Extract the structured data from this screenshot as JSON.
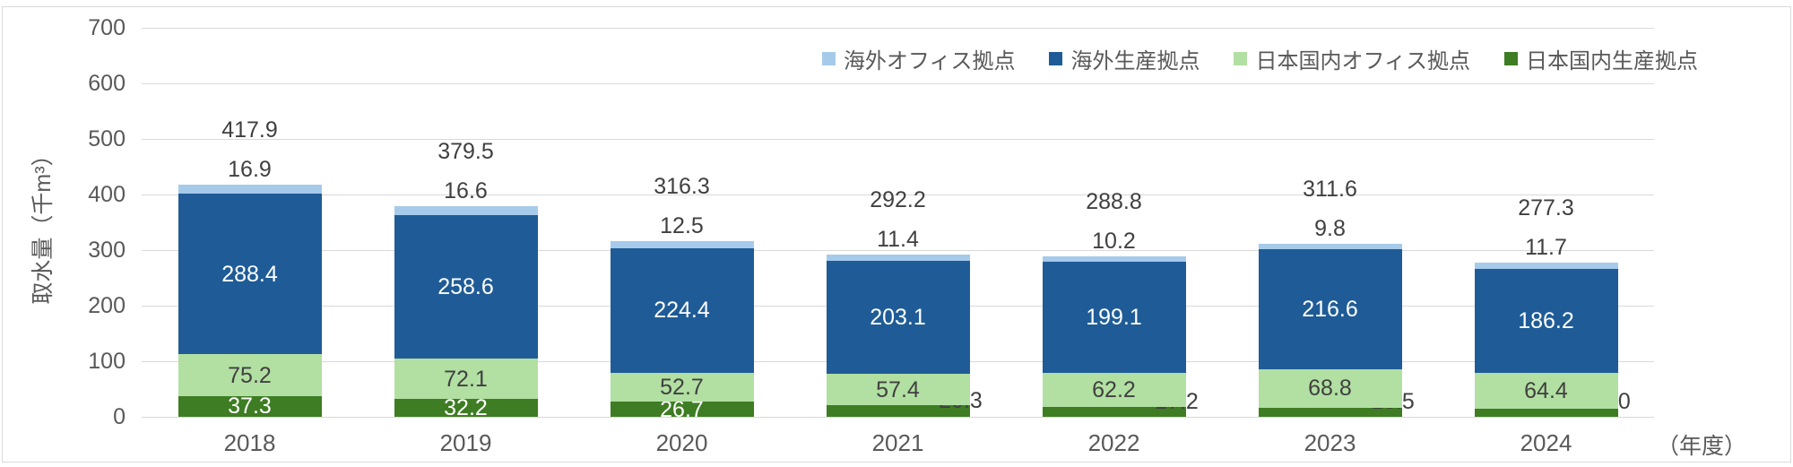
{
  "page": {
    "background": "#FFFFFF",
    "border_color": "#D9D9D9"
  },
  "chart_data": {
    "type": "bar",
    "stacked": true,
    "orientation": "vertical",
    "title": "",
    "ylabel": "取水量（千m³）",
    "xlabel_suffix": "（年度）",
    "ylim": [
      0,
      700
    ],
    "yticks": [
      0,
      100,
      200,
      300,
      400,
      500,
      600,
      700
    ],
    "grid": true,
    "gridline_color": "#D9D9D9",
    "tick_text_color": "#595959",
    "data_label_color": "#404040",
    "categories": [
      "2018",
      "2019",
      "2020",
      "2021",
      "2022",
      "2023",
      "2024"
    ],
    "series": [
      {
        "key": "domestic-production",
        "name": "日本国内生産拠点",
        "color": "#3E7D23",
        "label_color": "#FFFFFF",
        "values": [
          37.3,
          32.2,
          26.7,
          20.3,
          17.2,
          16.5,
          15.0
        ]
      },
      {
        "key": "domestic-office",
        "name": "日本国内オフィス拠点",
        "color": "#B2DFA2",
        "label_color": "#404040",
        "values": [
          75.2,
          72.1,
          52.7,
          57.4,
          62.2,
          68.8,
          64.4
        ]
      },
      {
        "key": "overseas-production",
        "name": "海外生産拠点",
        "color": "#1F5C97",
        "label_color": "#FFFFFF",
        "values": [
          288.4,
          258.6,
          224.4,
          203.1,
          199.1,
          216.6,
          186.2
        ]
      },
      {
        "key": "overseas-office",
        "name": "海外オフィス拠点",
        "color": "#A6CAEA",
        "label_color": "#404040",
        "values": [
          16.9,
          16.6,
          12.5,
          11.4,
          10.2,
          9.8,
          11.7
        ]
      }
    ],
    "totals": [
      417.9,
      379.5,
      316.3,
      292.2,
      288.8,
      311.6,
      277.3
    ],
    "legend": {
      "position": "top-right",
      "entries": [
        "海外オフィス拠点",
        "海外生産拠点",
        "日本国内オフィス拠点",
        "日本国内生産拠点"
      ]
    }
  }
}
